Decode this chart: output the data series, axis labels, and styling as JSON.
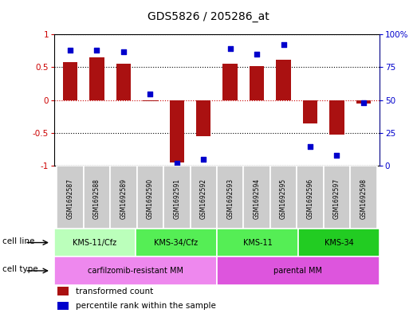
{
  "title": "GDS5826 / 205286_at",
  "samples": [
    "GSM1692587",
    "GSM1692588",
    "GSM1692589",
    "GSM1692590",
    "GSM1692591",
    "GSM1692592",
    "GSM1692593",
    "GSM1692594",
    "GSM1692595",
    "GSM1692596",
    "GSM1692597",
    "GSM1692598"
  ],
  "transformed_counts": [
    0.58,
    0.65,
    0.55,
    -0.02,
    -0.95,
    -0.55,
    0.55,
    0.52,
    0.62,
    -0.35,
    -0.52,
    -0.05
  ],
  "percentile_ranks": [
    88,
    88,
    87,
    55,
    2,
    5,
    89,
    85,
    92,
    15,
    8,
    48
  ],
  "cell_lines": [
    {
      "label": "KMS-11/Cfz",
      "start": 0,
      "end": 3,
      "color": "#bbffbb"
    },
    {
      "label": "KMS-34/Cfz",
      "start": 3,
      "end": 6,
      "color": "#55ee55"
    },
    {
      "label": "KMS-11",
      "start": 6,
      "end": 9,
      "color": "#55ee55"
    },
    {
      "label": "KMS-34",
      "start": 9,
      "end": 12,
      "color": "#22cc22"
    }
  ],
  "cell_types": [
    {
      "label": "carfilzomib-resistant MM",
      "start": 0,
      "end": 6,
      "color": "#ee88ee"
    },
    {
      "label": "parental MM",
      "start": 6,
      "end": 12,
      "color": "#dd55dd"
    }
  ],
  "bar_color": "#aa1111",
  "dot_color": "#0000cc",
  "ylim_left": [
    -1,
    1
  ],
  "ylim_right": [
    0,
    100
  ],
  "yticks_left": [
    -1,
    -0.5,
    0,
    0.5,
    1
  ],
  "ytick_labels_left": [
    "-1",
    "-0.5",
    "0",
    "0.5",
    "1"
  ],
  "yticks_right": [
    0,
    25,
    50,
    75,
    100
  ],
  "ytick_labels_right": [
    "0",
    "25",
    "50",
    "75",
    "100%"
  ],
  "hline_color": "#cc0000",
  "grid_color": "#000000",
  "background_plot": "#ffffff",
  "sample_box_color": "#cccccc",
  "cell_line_row_label": "cell line",
  "cell_type_row_label": "cell type",
  "legend_bar_label": "transformed count",
  "legend_dot_label": "percentile rank within the sample"
}
